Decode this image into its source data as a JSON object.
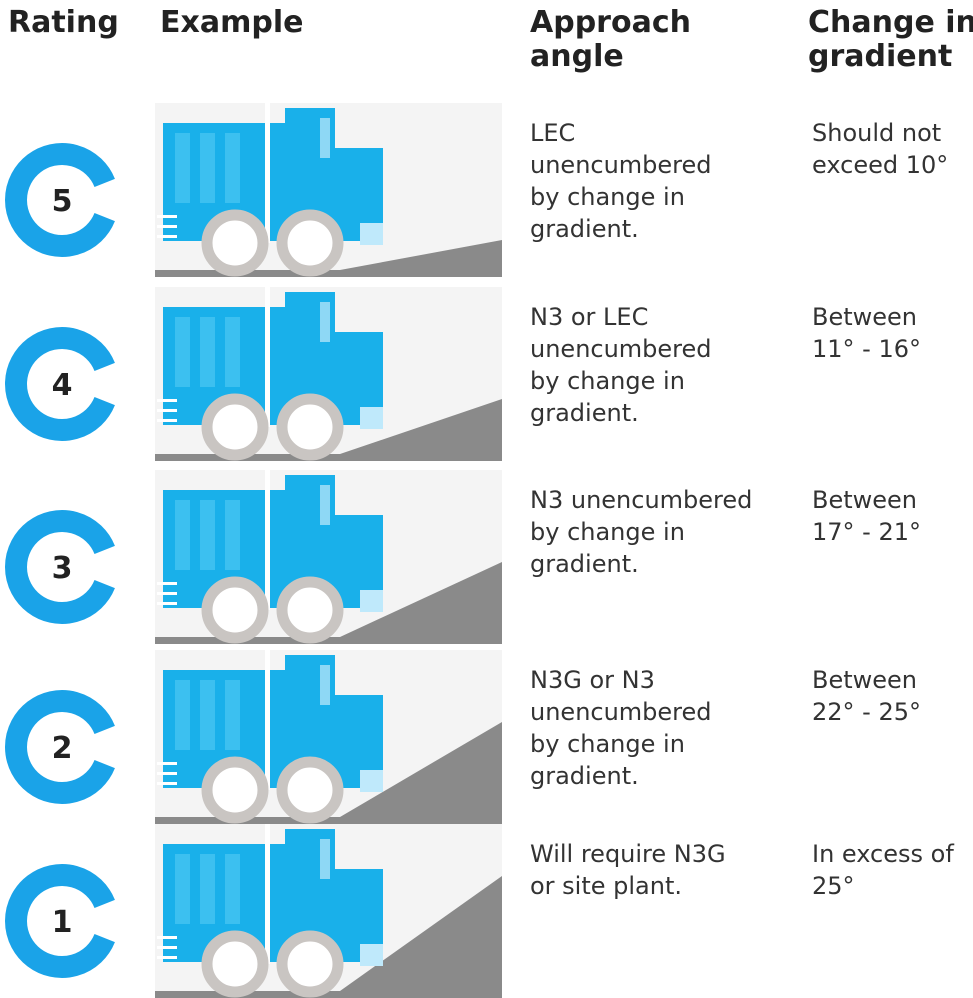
{
  "header": {
    "rating": "Rating",
    "example": "Example",
    "approach": [
      "Approach",
      "angle"
    ],
    "gradient": [
      "Change in",
      "gradient"
    ]
  },
  "rows": [
    {
      "rating": "5",
      "approach": [
        "LEC",
        "unencumbered",
        "by change in",
        "gradient."
      ],
      "gradient": [
        "Should not",
        "exceed 10°"
      ]
    },
    {
      "rating": "4",
      "approach": [
        "N3 or LEC",
        "unencumbered",
        "by change in",
        "gradient."
      ],
      "gradient": [
        "Between",
        "11° - 16°"
      ]
    },
    {
      "rating": "3",
      "approach": [
        "N3 unencumbered",
        "by change in",
        "gradient."
      ],
      "gradient": [
        "Between",
        "17° - 21°"
      ]
    },
    {
      "rating": "2",
      "approach": [
        "N3G or N3",
        "unencumbered",
        "by change in",
        "gradient."
      ],
      "gradient": [
        "Between",
        "22° - 25°"
      ]
    },
    {
      "rating": "1",
      "approach": [
        "Will require N3G",
        "or site plant."
      ],
      "gradient": [
        "In excess of",
        "25°"
      ]
    }
  ]
}
